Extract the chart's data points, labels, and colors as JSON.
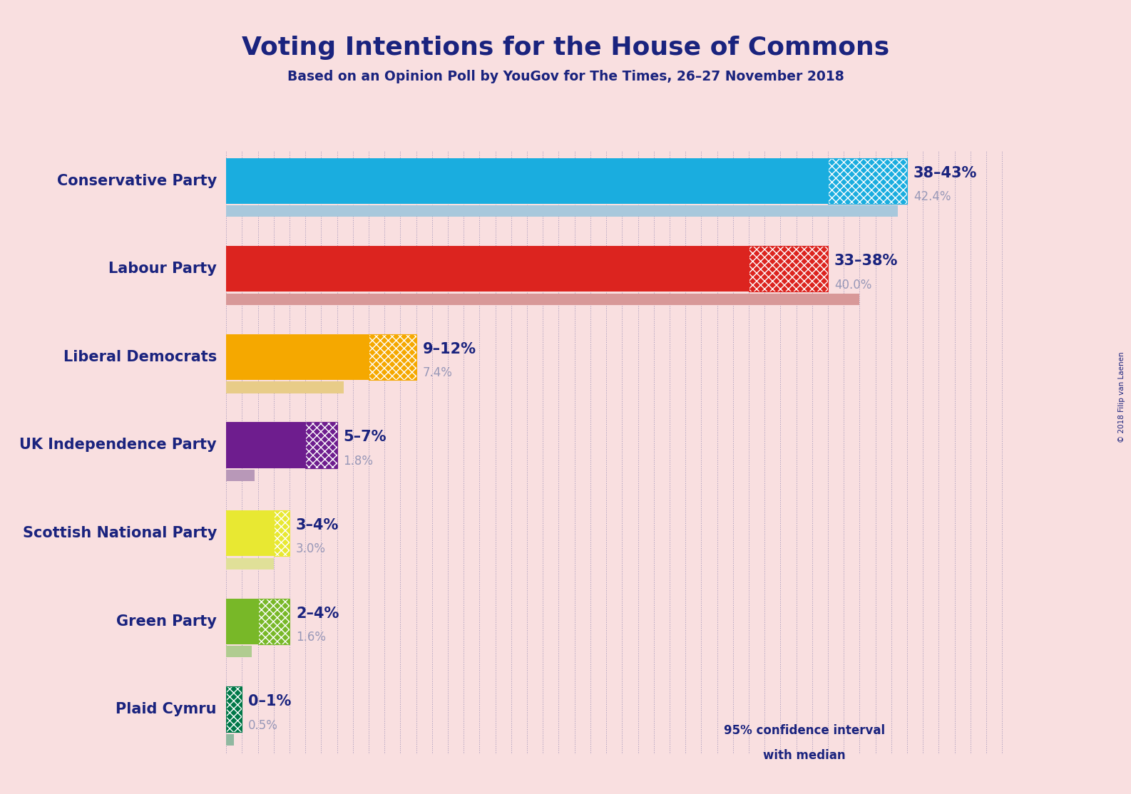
{
  "title": "Voting Intentions for the House of Commons",
  "subtitle": "Based on an Opinion Poll by YouGov for The Times, 26–27 November 2018",
  "copyright": "© 2018 Filip van Laenen",
  "background_color": "#f9dfe0",
  "parties": [
    {
      "name": "Conservative Party",
      "ci_low": 38,
      "ci_high": 43,
      "last_result": 42.4,
      "label_range": "38–43%",
      "label_last": "42.4%",
      "bar_color": "#1aaddf",
      "last_color": "#a8c8dc"
    },
    {
      "name": "Labour Party",
      "ci_low": 33,
      "ci_high": 38,
      "last_result": 40.0,
      "label_range": "33–38%",
      "label_last": "40.0%",
      "bar_color": "#dc241f",
      "last_color": "#d89898"
    },
    {
      "name": "Liberal Democrats",
      "ci_low": 9,
      "ci_high": 12,
      "last_result": 7.4,
      "label_range": "9–12%",
      "label_last": "7.4%",
      "bar_color": "#f5a800",
      "last_color": "#e8cc88"
    },
    {
      "name": "UK Independence Party",
      "ci_low": 5,
      "ci_high": 7,
      "last_result": 1.8,
      "label_range": "5–7%",
      "label_last": "1.8%",
      "bar_color": "#6e1d8e",
      "last_color": "#b898b8"
    },
    {
      "name": "Scottish National Party",
      "ci_low": 3,
      "ci_high": 4,
      "last_result": 3.0,
      "label_range": "3–4%",
      "label_last": "3.0%",
      "bar_color": "#e8e832",
      "last_color": "#e0e098"
    },
    {
      "name": "Green Party",
      "ci_low": 2,
      "ci_high": 4,
      "last_result": 1.6,
      "label_range": "2–4%",
      "label_last": "1.6%",
      "bar_color": "#78b828",
      "last_color": "#b0cc90"
    },
    {
      "name": "Plaid Cymru",
      "ci_low": 0,
      "ci_high": 1,
      "last_result": 0.5,
      "label_range": "0–1%",
      "label_last": "0.5%",
      "bar_color": "#007848",
      "last_color": "#90b8a0"
    }
  ],
  "x_max": 50,
  "label_color": "#1a237e",
  "last_label_color": "#9898b8",
  "legend_solid_color": "#1e3a6e",
  "legend_last_color": "#b0b0c8"
}
